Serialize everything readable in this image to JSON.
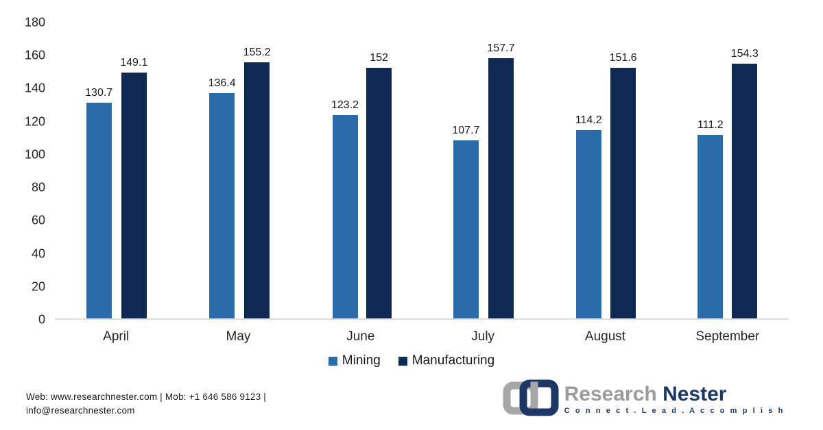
{
  "chart_data": {
    "type": "bar",
    "categories": [
      "April",
      "May",
      "June",
      "July",
      "August",
      "September"
    ],
    "series": [
      {
        "name": "Mining",
        "color": "#2a6ca9",
        "values": [
          130.7,
          136.4,
          123.2,
          107.7,
          114.2,
          111.2
        ]
      },
      {
        "name": "Manufacturing",
        "color": "#0f2a52",
        "values": [
          149.1,
          155.2,
          152,
          157.7,
          151.6,
          154.3
        ]
      }
    ],
    "title": "",
    "xlabel": "",
    "ylabel": "",
    "ylim": [
      0,
      180
    ],
    "yticks": [
      0,
      20,
      40,
      60,
      80,
      100,
      120,
      140,
      160,
      180
    ],
    "grid": false,
    "legend_position": "bottom",
    "data_labels": true
  },
  "colors": {
    "mining": "#2a6ca9",
    "manufacturing": "#0f2a52",
    "axis_line": "#dcdcdc",
    "text": "#262626"
  },
  "footer": {
    "contact_line1": "Web: www.researchnester.com | Mob: +1 646 586 9123 |",
    "contact_line2": "info@researchnester.com"
  },
  "logo": {
    "name_part1": "Research",
    "name_part2": "Nester",
    "tagline": "C o n n e c t .   L e a d .   A c c o m p l i s h"
  }
}
